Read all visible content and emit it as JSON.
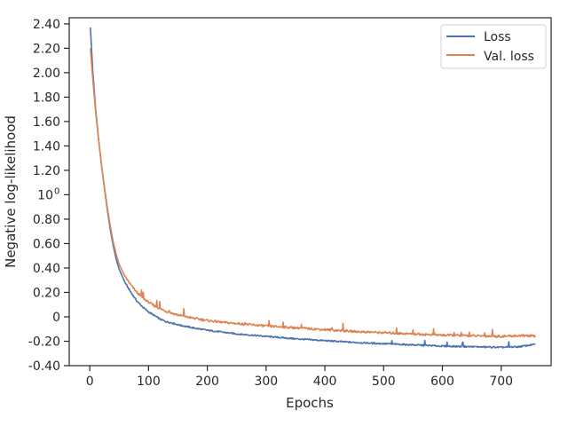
{
  "chart_data": {
    "type": "line",
    "xlabel": "Epochs",
    "ylabel": "Negative log-likelihood",
    "xlim": [
      -35,
      785
    ],
    "ylim": [
      -0.4,
      2.45
    ],
    "x_ticks": [
      0,
      100,
      200,
      300,
      400,
      500,
      600,
      700
    ],
    "y_ticks": [
      {
        "value": -0.4,
        "label": "-0.40"
      },
      {
        "value": -0.2,
        "label": "-0.20"
      },
      {
        "value": 0.0,
        "label": "0"
      },
      {
        "value": 0.2,
        "label": "0.20"
      },
      {
        "value": 0.4,
        "label": "0.40"
      },
      {
        "value": 0.6,
        "label": "0.60"
      },
      {
        "value": 0.8,
        "label": "0.80"
      },
      {
        "value": 1.0,
        "label": "10",
        "sup": "0"
      },
      {
        "value": 1.2,
        "label": "1.20"
      },
      {
        "value": 1.4,
        "label": "1.40"
      },
      {
        "value": 1.6,
        "label": "1.60"
      },
      {
        "value": 1.8,
        "label": "1.80"
      },
      {
        "value": 2.0,
        "label": "2.00"
      },
      {
        "value": 2.2,
        "label": "2.20"
      },
      {
        "value": 2.4,
        "label": "2.40"
      }
    ],
    "legend_position": "top-right",
    "grid": false,
    "series": [
      {
        "name": "Loss",
        "color": "#4c72b0",
        "x": [
          1,
          5,
          10,
          15,
          20,
          25,
          30,
          35,
          40,
          45,
          50,
          60,
          70,
          80,
          90,
          100,
          110,
          120,
          130,
          140,
          150,
          175,
          200,
          225,
          250,
          275,
          300,
          350,
          400,
          450,
          500,
          550,
          600,
          650,
          700,
          730,
          745,
          758
        ],
        "y": [
          2.37,
          2.02,
          1.7,
          1.45,
          1.24,
          1.05,
          0.87,
          0.71,
          0.58,
          0.47,
          0.39,
          0.28,
          0.2,
          0.13,
          0.08,
          0.04,
          0.01,
          -0.02,
          -0.04,
          -0.05,
          -0.065,
          -0.09,
          -0.11,
          -0.125,
          -0.14,
          -0.15,
          -0.16,
          -0.18,
          -0.195,
          -0.21,
          -0.22,
          -0.23,
          -0.24,
          -0.245,
          -0.25,
          -0.245,
          -0.235,
          -0.225
        ]
      },
      {
        "name": "Val. loss",
        "color": "#dd8452",
        "x": [
          1,
          5,
          10,
          15,
          20,
          25,
          30,
          35,
          40,
          45,
          50,
          60,
          70,
          80,
          90,
          100,
          110,
          120,
          130,
          140,
          150,
          175,
          200,
          225,
          250,
          275,
          300,
          350,
          400,
          450,
          500,
          550,
          600,
          650,
          700,
          730,
          745,
          758
        ],
        "y": [
          2.2,
          1.95,
          1.68,
          1.45,
          1.24,
          1.06,
          0.89,
          0.74,
          0.61,
          0.51,
          0.43,
          0.33,
          0.26,
          0.2,
          0.155,
          0.12,
          0.09,
          0.065,
          0.045,
          0.03,
          0.015,
          -0.01,
          -0.03,
          -0.045,
          -0.055,
          -0.065,
          -0.075,
          -0.09,
          -0.105,
          -0.12,
          -0.13,
          -0.14,
          -0.15,
          -0.155,
          -0.16,
          -0.155,
          -0.155,
          -0.16
        ]
      }
    ]
  }
}
